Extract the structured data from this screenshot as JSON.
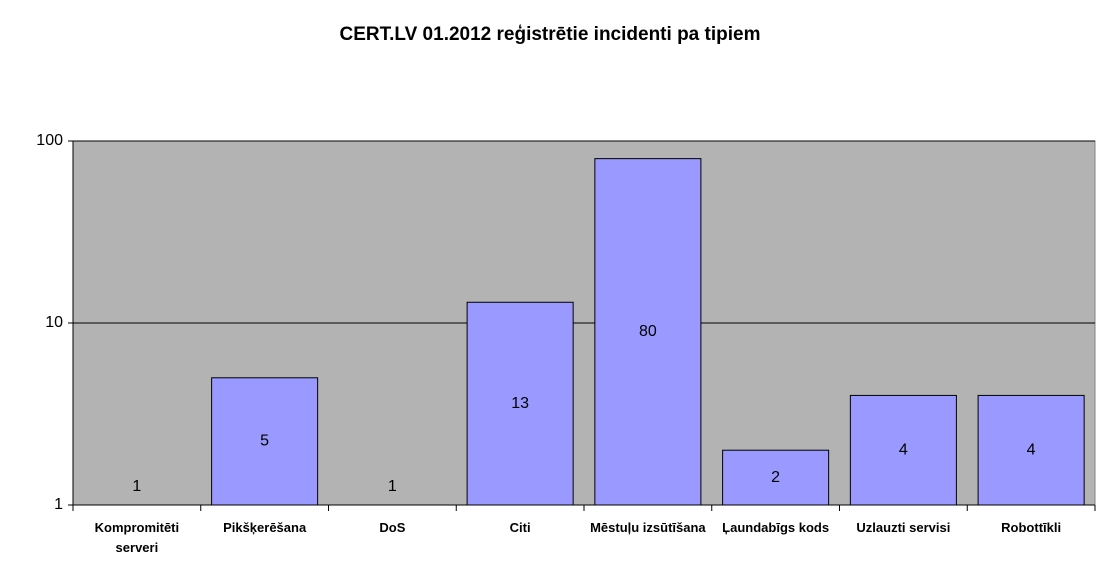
{
  "chart_data": {
    "type": "bar",
    "title": "CERT.LV 01.2012 reģistrētie incidenti pa tipiem",
    "categories": [
      "Kompromitēti serveri",
      "Pikšķerēšana",
      "DoS",
      "Citi",
      "Mēstuļu izsūtīšana",
      "Ļaundabīgs kods",
      "Uzlauzti servisi",
      "Robottīkli"
    ],
    "values": [
      1,
      5,
      1,
      13,
      80,
      2,
      4,
      4
    ],
    "color": "#9999ff",
    "ylim": [
      1,
      100
    ],
    "yticks": [
      1,
      10,
      100
    ],
    "log_scale": true,
    "grid": true
  }
}
